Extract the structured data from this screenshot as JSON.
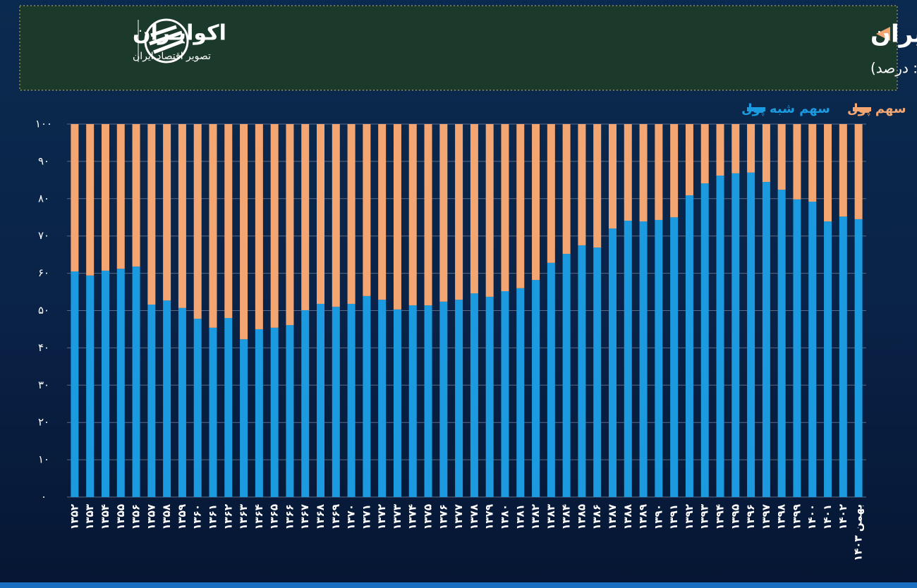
{
  "brand": {
    "name": "اکوایـران",
    "tagline": "تصویر اقتصاد ایران"
  },
  "chart_data": {
    "type": "stacked-bar",
    "title": "سهم پول و شبه پول  از نقدینگی در اقتصاد ایران",
    "subtitle": "(واحد: درصد)",
    "categories": [
      "۱۳۵۲",
      "۱۳۵۳",
      "۱۳۵۴",
      "۱۳۵۵",
      "۱۳۵۶",
      "۱۳۵۷",
      "۱۳۵۸",
      "۱۳۵۹",
      "۱۳۶۰",
      "۱۳۶۱",
      "۱۳۶۲",
      "۱۳۶۳",
      "۱۳۶۴",
      "۱۳۶۵",
      "۱۳۶۶",
      "۱۳۶۷",
      "۱۳۶۸",
      "۱۳۶۹",
      "۱۳۷۰",
      "۱۳۷۱",
      "۱۳۷۲",
      "۱۳۷۳",
      "۱۳۷۴",
      "۱۳۷۵",
      "۱۳۷۶",
      "۱۳۷۷",
      "۱۳۷۸",
      "۱۳۷۹",
      "۱۳۸۰",
      "۱۳۸۱",
      "۱۳۸۲",
      "۱۳۸۳",
      "۱۳۸۴",
      "۱۳۸۵",
      "۱۳۸۶",
      "۱۳۸۷",
      "۱۳۸۸",
      "۱۳۸۹",
      "۱۳۹۰",
      "۱۳۹۱",
      "۱۳۹۲",
      "۱۳۹۳",
      "۱۳۹۴",
      "۱۳۹۵",
      "۱۳۹۶",
      "۱۳۹۷",
      "۱۳۹۸",
      "۱۳۹۹",
      "۱۴۰۰",
      "۱۴۰۱",
      "۱۴۰۲",
      "بهمن ۱۴۰۳"
    ],
    "series": [
      {
        "name": "سهم شبه پول",
        "color": "#1b9ae0",
        "values": [
          60.5,
          59.4,
          60.7,
          61.2,
          61.8,
          51.6,
          52.7,
          50.7,
          47.8,
          45.4,
          48.0,
          42.3,
          45.0,
          45.4,
          46.1,
          50.1,
          51.8,
          51.0,
          51.8,
          53.9,
          52.9,
          50.3,
          51.4,
          51.4,
          52.4,
          52.9,
          54.6,
          53.7,
          55.2,
          56.0,
          58.2,
          62.8,
          65.2,
          67.5,
          66.9,
          72.0,
          74.1,
          73.9,
          74.3,
          75.0,
          80.9,
          84.1,
          86.2,
          86.8,
          87.0,
          84.5,
          82.4,
          79.8,
          79.2,
          73.9,
          75.2,
          74.5
        ]
      },
      {
        "name": "سهم پول",
        "color": "#f4a672",
        "values": [
          39.5,
          40.6,
          39.3,
          38.8,
          38.2,
          48.4,
          47.3,
          49.3,
          52.2,
          54.6,
          52.0,
          57.7,
          55.0,
          54.6,
          53.9,
          49.9,
          48.2,
          49.0,
          48.2,
          46.1,
          47.1,
          49.7,
          48.6,
          48.6,
          47.6,
          47.1,
          45.4,
          46.3,
          44.8,
          44.0,
          41.8,
          37.2,
          34.8,
          32.5,
          33.1,
          28.0,
          25.9,
          26.1,
          25.7,
          25.0,
          19.1,
          15.9,
          13.8,
          13.2,
          13.0,
          15.5,
          17.6,
          20.2,
          20.8,
          26.1,
          24.8,
          25.5
        ]
      }
    ],
    "ylim": [
      0,
      100
    ],
    "yticks": [
      {
        "value": 0,
        "label": "۰"
      },
      {
        "value": 10,
        "label": "۱۰"
      },
      {
        "value": 20,
        "label": "۲۰"
      },
      {
        "value": 30,
        "label": "۳۰"
      },
      {
        "value": 40,
        "label": "۴۰"
      },
      {
        "value": 50,
        "label": "۵۰"
      },
      {
        "value": 60,
        "label": "۶۰"
      },
      {
        "value": 70,
        "label": "۷۰"
      },
      {
        "value": 80,
        "label": "۸۰"
      },
      {
        "value": 90,
        "label": "۹۰"
      },
      {
        "value": 100,
        "label": "۱۰۰"
      }
    ],
    "grid": true
  }
}
